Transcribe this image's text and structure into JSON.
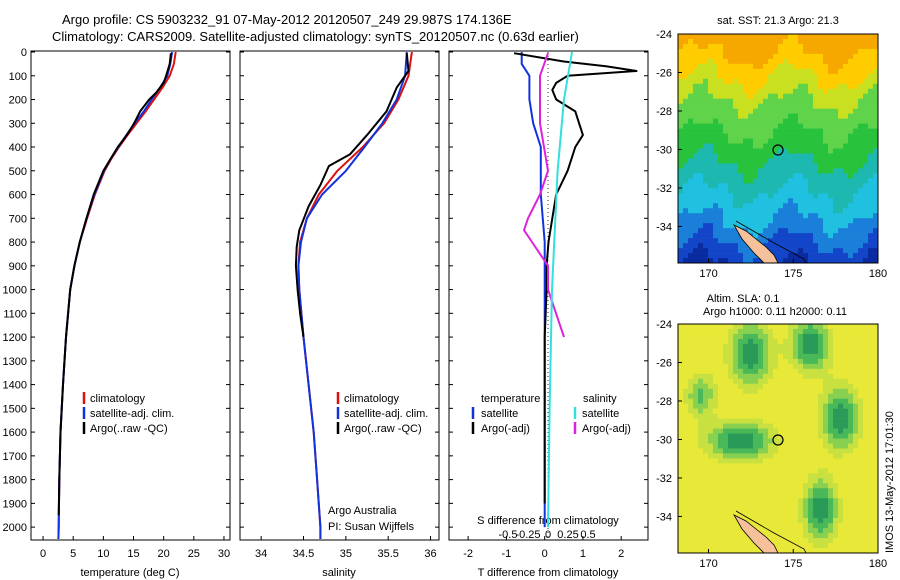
{
  "header": {
    "line1": "Argo profile: CS 5903232_91 07-May-2012 20120507_249 29.987S 174.136E",
    "line2": "Climatology: CARS2009. Satellite-adjusted climatology: synTS_20120507.nc (0.63d earlier)"
  },
  "colors": {
    "climatology": "#dd1111",
    "satellite": "#1133dd",
    "argo": "#000000",
    "salinity_satellite": "#33e0e0",
    "salinity_argo": "#dd22dd"
  },
  "depth_ticks": [
    "0",
    "100",
    "200",
    "300",
    "400",
    "500",
    "600",
    "700",
    "800",
    "900",
    "1000",
    "1100",
    "1200",
    "1300",
    "1400",
    "1500",
    "1600",
    "1700",
    "1800",
    "1900",
    "2000"
  ],
  "panels": {
    "temperature": {
      "xlabel": "temperature (deg C)",
      "xticks": [
        "0",
        "5",
        "10",
        "15",
        "20",
        "25",
        "30"
      ],
      "legend": [
        "climatology",
        "satellite-adj. clim.",
        "Argo(..raw -QC)"
      ]
    },
    "salinity": {
      "xlabel": "salinity",
      "xticks": [
        "34",
        "34.5",
        "35",
        "35.5",
        "36"
      ],
      "legend": [
        "climatology",
        "satellite-adj. clim.",
        "Argo(..raw -QC)"
      ],
      "note1": "Argo Australia",
      "note2": "PI: Susan Wijffels"
    },
    "difference": {
      "xlabel_bottom": "T difference from climatology",
      "xlabel_top": "S difference from climatology",
      "xticks_bottom": [
        "-2",
        "-1",
        "0",
        "1",
        "2"
      ],
      "xticks_top": [
        "-0.5",
        "-0.25",
        "0",
        "0.25",
        "0.5"
      ],
      "legend_temp_title": "temperature",
      "legend_sal_title": "salinity",
      "legend_items": [
        "satellite",
        "Argo(-adj)",
        "satellite",
        "Argo(-adj)"
      ]
    }
  },
  "maps": {
    "sst": {
      "title": "sat. SST: 21.3 Argo: 21.3",
      "lat_ticks": [
        "-24",
        "-26",
        "-28",
        "-30",
        "-32",
        "-34"
      ],
      "lon_ticks": [
        "170",
        "175",
        "180"
      ]
    },
    "sla": {
      "title1": "Altim. SLA: 0.1",
      "title2": "Argo h1000: 0.11 h2000: 0.11",
      "lat_ticks": [
        "-24",
        "-26",
        "-28",
        "-30",
        "-32",
        "-34"
      ],
      "lon_ticks": [
        "170",
        "175",
        "180"
      ]
    }
  },
  "credit": "IMOS 13-May-2012 17:01:30",
  "chart_data": [
    {
      "type": "line",
      "title": "",
      "xlabel": "temperature (deg C)",
      "ylabel": "",
      "xlim": [
        -2,
        31
      ],
      "ylim": [
        2050,
        0
      ],
      "series": [
        {
          "name": "climatology",
          "y": [
            0,
            50,
            100,
            150,
            200,
            250,
            300,
            350,
            400,
            450,
            500,
            600,
            700,
            800,
            900,
            1000,
            1200,
            1400,
            1600,
            1800,
            2000,
            2050
          ],
          "x": [
            22.0,
            21.7,
            21.0,
            19.8,
            18.4,
            17.0,
            15.5,
            14.0,
            12.6,
            11.3,
            10.2,
            8.6,
            7.3,
            6.1,
            5.2,
            4.5,
            3.8,
            3.3,
            2.9,
            2.7,
            2.6,
            2.55
          ]
        },
        {
          "name": "satellite-adj. clim.",
          "y": [
            0,
            50,
            100,
            150,
            200,
            250,
            300,
            350,
            400,
            450,
            500,
            600,
            700,
            800,
            900,
            1000,
            1200,
            1400,
            1600,
            1800,
            2000,
            2050
          ],
          "x": [
            21.4,
            21.1,
            20.6,
            19.4,
            18.0,
            16.7,
            15.2,
            13.8,
            12.5,
            11.2,
            10.1,
            8.5,
            7.2,
            6.1,
            5.2,
            4.5,
            3.8,
            3.3,
            2.9,
            2.7,
            2.6,
            2.55
          ]
        },
        {
          "name": "Argo(..raw -QC)",
          "y": [
            5,
            50,
            100,
            130,
            170,
            200,
            250,
            300,
            350,
            400,
            450,
            500,
            600,
            700,
            800,
            900,
            1000,
            1200,
            1400,
            1600,
            1800,
            1950
          ],
          "x": [
            21.2,
            21.0,
            20.4,
            20.0,
            18.8,
            17.6,
            16.1,
            15.1,
            13.9,
            12.4,
            11.2,
            10.0,
            8.4,
            7.2,
            6.1,
            5.2,
            4.5,
            3.8,
            3.3,
            2.9,
            2.7,
            2.6
          ]
        }
      ]
    },
    {
      "type": "line",
      "title": "",
      "xlabel": "salinity",
      "ylabel": "",
      "xlim": [
        33.75,
        36.1
      ],
      "ylim": [
        2050,
        0
      ],
      "series": [
        {
          "name": "climatology",
          "y": [
            0,
            100,
            200,
            300,
            400,
            500,
            600,
            700,
            800,
            900,
            1000,
            1200,
            1400,
            1600,
            1800,
            2000,
            2050
          ],
          "x": [
            35.78,
            35.74,
            35.62,
            35.45,
            35.2,
            34.9,
            34.68,
            34.54,
            34.46,
            34.44,
            34.45,
            34.5,
            34.56,
            34.62,
            34.66,
            34.7,
            34.7
          ]
        },
        {
          "name": "satellite-adj. clim.",
          "y": [
            0,
            100,
            200,
            300,
            400,
            500,
            600,
            700,
            800,
            900,
            1000,
            1200,
            1400,
            1600,
            1800,
            2000,
            2050
          ],
          "x": [
            35.72,
            35.7,
            35.6,
            35.43,
            35.22,
            35.0,
            34.72,
            34.54,
            34.47,
            34.44,
            34.45,
            34.5,
            34.56,
            34.62,
            34.66,
            34.7,
            34.7
          ]
        },
        {
          "name": "Argo(..raw -QC)",
          "y": [
            5,
            80,
            150,
            250,
            350,
            430,
            480,
            560,
            650,
            750,
            820,
            900,
            1000,
            1100,
            1200
          ],
          "x": [
            35.72,
            35.74,
            35.6,
            35.48,
            35.25,
            35.05,
            34.8,
            34.7,
            34.56,
            34.45,
            34.42,
            34.41,
            34.43,
            34.46,
            34.5
          ]
        }
      ]
    },
    {
      "type": "line",
      "title": "",
      "xlabel": "T difference from climatology",
      "ylabel": "",
      "xlim": [
        -2.5,
        2.7
      ],
      "ylim": [
        2050,
        0
      ],
      "series": [
        {
          "name": "satellite",
          "y": [
            0,
            50,
            100,
            200,
            300,
            400,
            600,
            800,
            1000,
            1500,
            2000
          ],
          "x": [
            -0.6,
            -0.6,
            -0.4,
            -0.4,
            -0.3,
            -0.1,
            -0.1,
            0.0,
            0.0,
            0.0,
            0.0
          ]
        },
        {
          "name": "Argo(-adj)",
          "y": [
            5,
            40,
            60,
            80,
            100,
            130,
            160,
            200,
            250,
            300,
            350,
            400,
            500,
            600,
            700,
            800,
            900,
            1000,
            1200,
            1500,
            1700,
            1900
          ],
          "x": [
            -0.8,
            0.5,
            1.6,
            2.4,
            0.6,
            0.3,
            0.2,
            0.3,
            0.8,
            0.9,
            1.0,
            0.8,
            0.6,
            0.3,
            0.2,
            0.1,
            0.05,
            0.05,
            0.0,
            0.0,
            0.0,
            0.0
          ]
        },
        {
          "name": "satellite",
          "y": [
            0,
            200,
            500,
            1000,
            1500,
            2000
          ],
          "x": [
            0.3,
            0.2,
            0.12,
            0.05,
            0.02,
            0.0
          ]
        },
        {
          "name": "Argo(-adj)",
          "y": [
            5,
            100,
            200,
            300,
            400,
            500,
            600,
            700,
            750,
            800,
            900,
            1000,
            1100,
            1200
          ],
          "x": [
            0.0,
            -0.1,
            -0.1,
            -0.1,
            -0.05,
            0.0,
            -0.1,
            -0.25,
            -0.3,
            -0.2,
            0.0,
            0.0,
            0.1,
            0.2
          ]
        }
      ]
    }
  ]
}
